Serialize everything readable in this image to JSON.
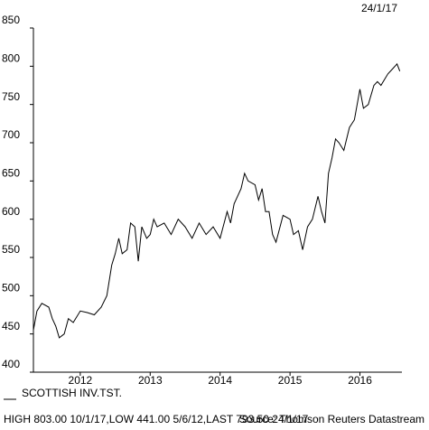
{
  "chart_data": {
    "type": "line",
    "date_label": "24/1/17",
    "x": [
      2011.83,
      2011.88,
      2011.95,
      2012.05,
      2012.1,
      2012.15,
      2012.2,
      2012.27,
      2012.33,
      2012.4,
      2012.5,
      2012.6,
      2012.7,
      2012.8,
      2012.88,
      2012.95,
      2013.0,
      2013.05,
      2013.1,
      2013.17,
      2013.22,
      2013.28,
      2013.33,
      2013.38,
      2013.45,
      2013.5,
      2013.55,
      2013.6,
      2013.7,
      2013.8,
      2013.9,
      2014.0,
      2014.1,
      2014.2,
      2014.3,
      2014.4,
      2014.5,
      2014.6,
      2014.65,
      2014.7,
      2014.8,
      2014.85,
      2014.9,
      2015.0,
      2015.05,
      2015.1,
      2015.15,
      2015.2,
      2015.25,
      2015.3,
      2015.4,
      2015.5,
      2015.55,
      2015.62,
      2015.68,
      2015.75,
      2015.82,
      2015.9,
      2015.95,
      2016.0,
      2016.05,
      2016.1,
      2016.15,
      2016.2,
      2016.27,
      2016.35,
      2016.42,
      2016.5,
      2016.55,
      2016.62,
      2016.7,
      2016.75,
      2016.8,
      2016.9,
      2016.95,
      2017.03,
      2017.07
    ],
    "series": [
      {
        "name": "SCOTTISH INV.TST.",
        "color": "#000000",
        "values": [
          455,
          480,
          490,
          485,
          470,
          460,
          445,
          450,
          470,
          465,
          480,
          478,
          475,
          485,
          500,
          540,
          555,
          575,
          555,
          560,
          595,
          590,
          545,
          590,
          575,
          580,
          600,
          590,
          595,
          580,
          600,
          590,
          575,
          595,
          580,
          590,
          575,
          610,
          595,
          620,
          640,
          660,
          650,
          645,
          625,
          640,
          610,
          610,
          580,
          570,
          605,
          600,
          580,
          585,
          560,
          590,
          600,
          630,
          610,
          595,
          660,
          680,
          705,
          700,
          690,
          720,
          730,
          770,
          745,
          750,
          775,
          780,
          775,
          790,
          795,
          803,
          793.5
        ]
      }
    ],
    "xlim": [
      2011.83,
      2017.1
    ],
    "xticks": [
      {
        "value": 2012.5,
        "label": "2012"
      },
      {
        "value": 2013.5,
        "label": "2013"
      },
      {
        "value": 2014.5,
        "label": "2014"
      },
      {
        "value": 2015.5,
        "label": "2015"
      },
      {
        "value": 2016.5,
        "label": "2016"
      }
    ],
    "ylim": [
      400,
      850
    ],
    "yticks": [
      400,
      450,
      500,
      550,
      600,
      650,
      700,
      750,
      800,
      850
    ],
    "footer": "HIGH 803.00 10/1/17,LOW 441.00 5/6/12,LAST 793.50 24/1/17",
    "source": "Source: Thomson Reuters Datastream"
  }
}
